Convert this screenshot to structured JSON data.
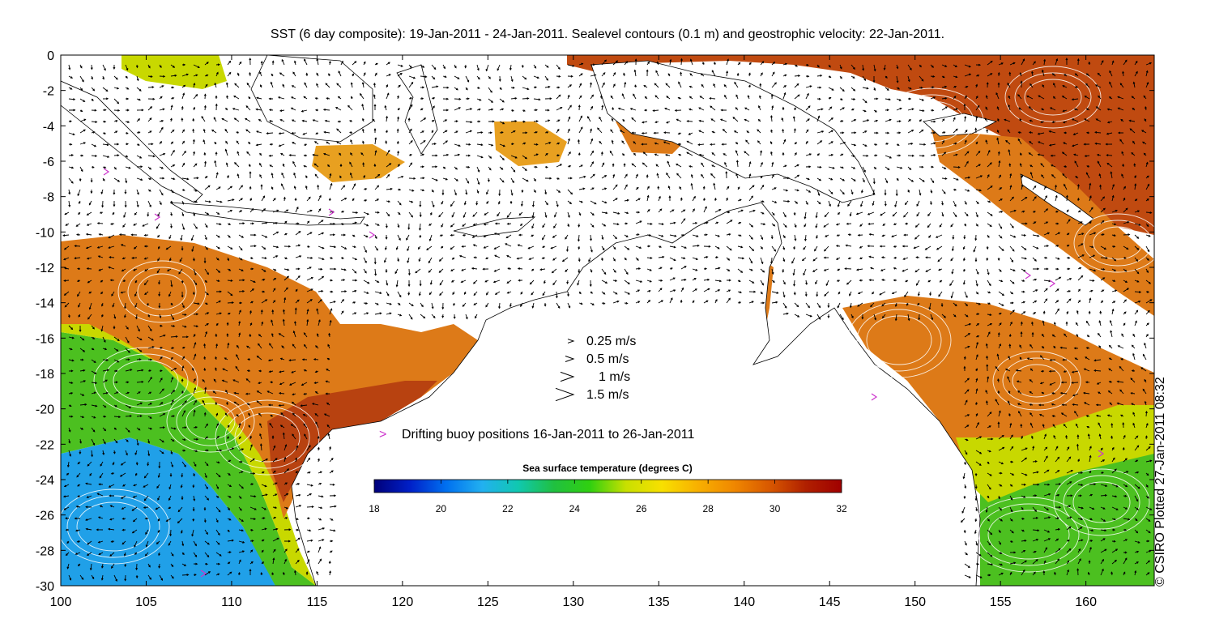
{
  "title": "SST (6 day composite): 19-Jan-2011 - 24-Jan-2011. Sealevel contours (0.1 m) and geostrophic velocity: 22-Jan-2011.",
  "credit": "© CSIRO Plotted 27-Jan-2011 08:32",
  "axes": {
    "x_ticks": [
      "100",
      "105",
      "110",
      "115",
      "120",
      "125",
      "130",
      "135",
      "140",
      "145",
      "150",
      "155",
      "160"
    ],
    "y_ticks": [
      "0",
      "-2",
      "-4",
      "-6",
      "-8",
      "-10",
      "-12",
      "-14",
      "-16",
      "-18",
      "-20",
      "-22",
      "-24",
      "-26",
      "-28",
      "-30"
    ],
    "xlim": [
      100,
      164
    ],
    "ylim": [
      -30,
      0
    ]
  },
  "velocity_legend": [
    {
      "label": "0.25 m/s",
      "speed": 0.25
    },
    {
      "label": "0.5 m/s",
      "speed": 0.5
    },
    {
      "label": "1 m/s",
      "speed": 1
    },
    {
      "label": "1.5 m/s",
      "speed": 1.5
    }
  ],
  "buoy_legend": {
    "symbol": ">",
    "label": "Drifting buoy positions 16-Jan-2011 to 26-Jan-2011",
    "color": "#cc33cc"
  },
  "colorbar": {
    "title": "Sea surface temperature (degrees C)",
    "ticks": [
      "18",
      "20",
      "22",
      "24",
      "26",
      "28",
      "30",
      "32"
    ],
    "range": [
      18,
      32
    ],
    "colors": [
      "#00007a",
      "#0020c8",
      "#0070f0",
      "#22b0f0",
      "#10c8b0",
      "#20c040",
      "#30d010",
      "#c8e000",
      "#f8e000",
      "#f8b000",
      "#f08800",
      "#d85800",
      "#b02000",
      "#a00000"
    ]
  },
  "colors": {
    "ocean_warm": "#dd7a18",
    "ocean_hot": "#b84210",
    "ocean_mid": "#e8a020",
    "ocean_green": "#4cc020",
    "ocean_yellow": "#c8d800",
    "ocean_cool": "#20a0e8",
    "land": "#ffffff",
    "cloud": "#ffffff",
    "coast": "#000000",
    "contour": "#ffffff",
    "vector": "#000000"
  }
}
